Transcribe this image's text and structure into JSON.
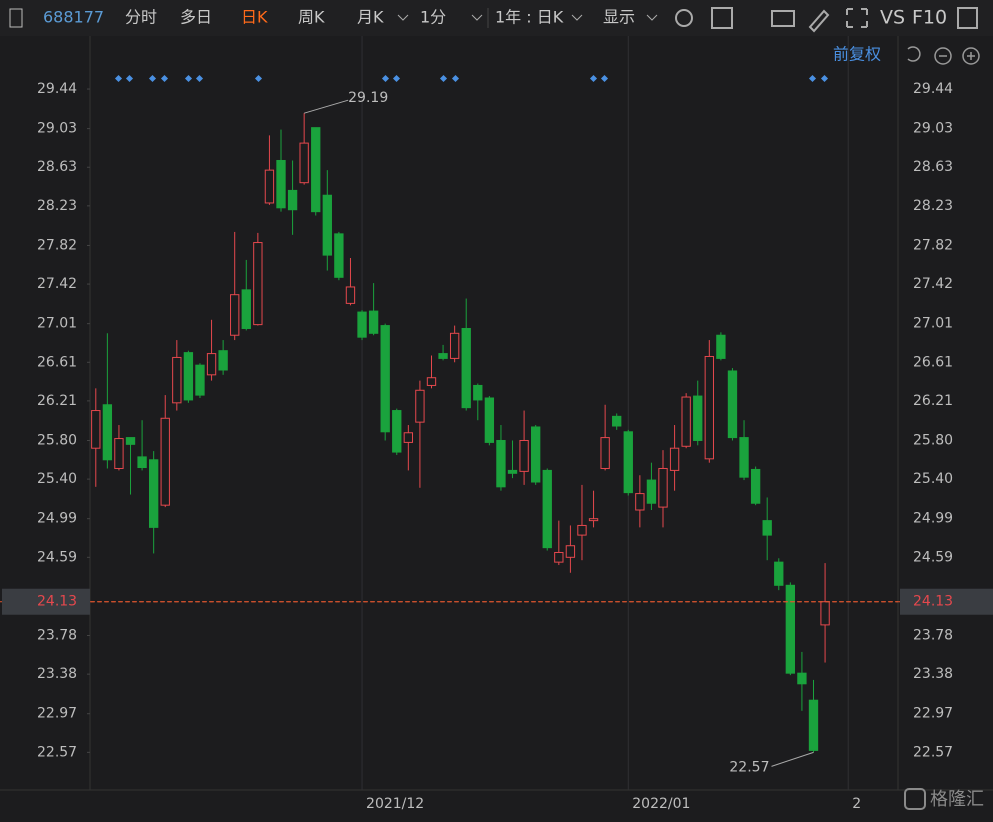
{
  "toolbar": {
    "code": "688177",
    "tabs": [
      "分时",
      "多日",
      "日K",
      "周K",
      "月K",
      "1分",
      "1年 : 日K",
      "显示"
    ],
    "right": [
      "VS",
      "F10"
    ],
    "adjust": "前复权",
    "watermark": "格隆汇"
  },
  "chart_data": {
    "type": "candlestick",
    "categories": [
      null,
      null,
      null,
      null,
      null,
      null,
      null,
      null,
      null,
      null,
      null,
      null,
      null,
      null,
      null,
      null,
      null,
      null,
      null,
      null,
      null,
      null,
      null,
      null,
      null,
      null,
      null,
      null,
      null,
      null,
      null,
      null,
      null,
      null,
      null,
      null,
      null,
      null,
      null,
      null,
      null,
      null,
      null,
      null,
      null,
      null,
      null,
      null,
      null,
      null,
      null,
      null,
      null,
      null,
      null,
      null,
      null,
      null,
      null,
      null,
      null,
      null,
      null,
      null
    ],
    "open": [
      25.72,
      26.17,
      25.51,
      25.83,
      25.63,
      25.6,
      25.13,
      26.19,
      26.71,
      26.58,
      26.48,
      26.73,
      26.89,
      27.36,
      27.0,
      28.26,
      28.7,
      28.39,
      28.47,
      29.04,
      28.34,
      27.94,
      27.22,
      27.13,
      27.14,
      26.99,
      26.11,
      25.78,
      25.99,
      26.37,
      26.7,
      26.65,
      26.96,
      26.37,
      26.24,
      25.8,
      25.49,
      25.48,
      25.94,
      25.49,
      24.54,
      24.59,
      24.82,
      24.97,
      25.51,
      26.05,
      25.89,
      25.08,
      25.39,
      25.11,
      25.49,
      25.74,
      26.26,
      25.61,
      26.89,
      26.52,
      25.83,
      25.5,
      24.97,
      24.54,
      24.3,
      23.39,
      23.11,
      23.89
    ],
    "high": [
      26.34,
      26.91,
      25.96,
      25.83,
      26.01,
      25.69,
      26.27,
      26.84,
      26.73,
      26.6,
      27.05,
      26.84,
      27.96,
      27.67,
      27.95,
      28.96,
      29.02,
      28.7,
      29.19,
      29.04,
      28.6,
      27.96,
      27.69,
      27.15,
      27.43,
      27.01,
      26.13,
      25.96,
      26.42,
      26.68,
      26.79,
      26.99,
      27.27,
      26.39,
      26.26,
      25.96,
      25.8,
      26.11,
      25.96,
      25.51,
      24.97,
      24.92,
      25.34,
      25.28,
      26.17,
      26.08,
      25.91,
      25.44,
      25.57,
      25.7,
      25.96,
      26.29,
      26.42,
      26.84,
      26.92,
      26.55,
      26.01,
      25.53,
      25.21,
      24.58,
      24.33,
      23.61,
      23.32,
      24.53
    ],
    "low": [
      25.32,
      25.51,
      25.49,
      25.24,
      25.49,
      24.63,
      25.11,
      26.11,
      26.19,
      26.24,
      26.42,
      26.48,
      26.84,
      26.94,
      26.99,
      28.24,
      28.17,
      27.93,
      28.45,
      28.13,
      27.56,
      27.46,
      27.2,
      26.84,
      26.89,
      25.8,
      25.65,
      25.49,
      25.31,
      26.34,
      26.63,
      26.61,
      26.11,
      26.01,
      25.75,
      25.28,
      25.41,
      25.34,
      25.34,
      24.66,
      24.51,
      24.43,
      24.56,
      24.9,
      25.49,
      25.91,
      25.23,
      24.9,
      25.08,
      24.9,
      25.28,
      25.72,
      25.75,
      25.57,
      26.63,
      25.8,
      25.39,
      25.13,
      24.56,
      24.25,
      23.37,
      23.0,
      22.57,
      23.5
    ],
    "close": [
      26.11,
      25.6,
      25.82,
      25.76,
      25.52,
      24.9,
      26.03,
      26.66,
      26.22,
      26.27,
      26.7,
      26.53,
      27.31,
      26.96,
      27.85,
      28.6,
      28.21,
      28.19,
      28.88,
      28.17,
      27.72,
      27.49,
      27.39,
      26.87,
      26.91,
      25.89,
      25.68,
      25.88,
      26.32,
      26.45,
      26.65,
      26.91,
      26.14,
      26.22,
      25.78,
      25.32,
      25.46,
      25.8,
      25.37,
      24.69,
      24.64,
      24.71,
      24.92,
      24.99,
      25.83,
      25.95,
      25.26,
      25.25,
      25.15,
      25.51,
      25.72,
      26.25,
      25.8,
      26.67,
      26.65,
      25.83,
      25.42,
      25.15,
      24.82,
      24.3,
      23.39,
      23.28,
      22.59,
      24.13
    ],
    "up_color": "#e5484d",
    "down_color": "#1aa33d",
    "xlim": [
      -0.5,
      69.3
    ],
    "xticks": [
      {
        "value": 23,
        "label": "2021/12"
      },
      {
        "value": 46,
        "label": "2022/01"
      },
      {
        "value": 65,
        "label": "2"
      }
    ],
    "ylim": [
      22.18,
      29.72
    ],
    "yticks": [
      29.44,
      29.03,
      28.63,
      28.23,
      27.82,
      27.42,
      27.01,
      26.61,
      26.21,
      {
        "value": 25.8,
        "label": "25.80"
      },
      {
        "value": 25.4,
        "label": "25.40"
      },
      24.99,
      24.59,
      23.78,
      23.38,
      22.97,
      22.57
    ],
    "price_line_color": "#e0562f"
  }
}
